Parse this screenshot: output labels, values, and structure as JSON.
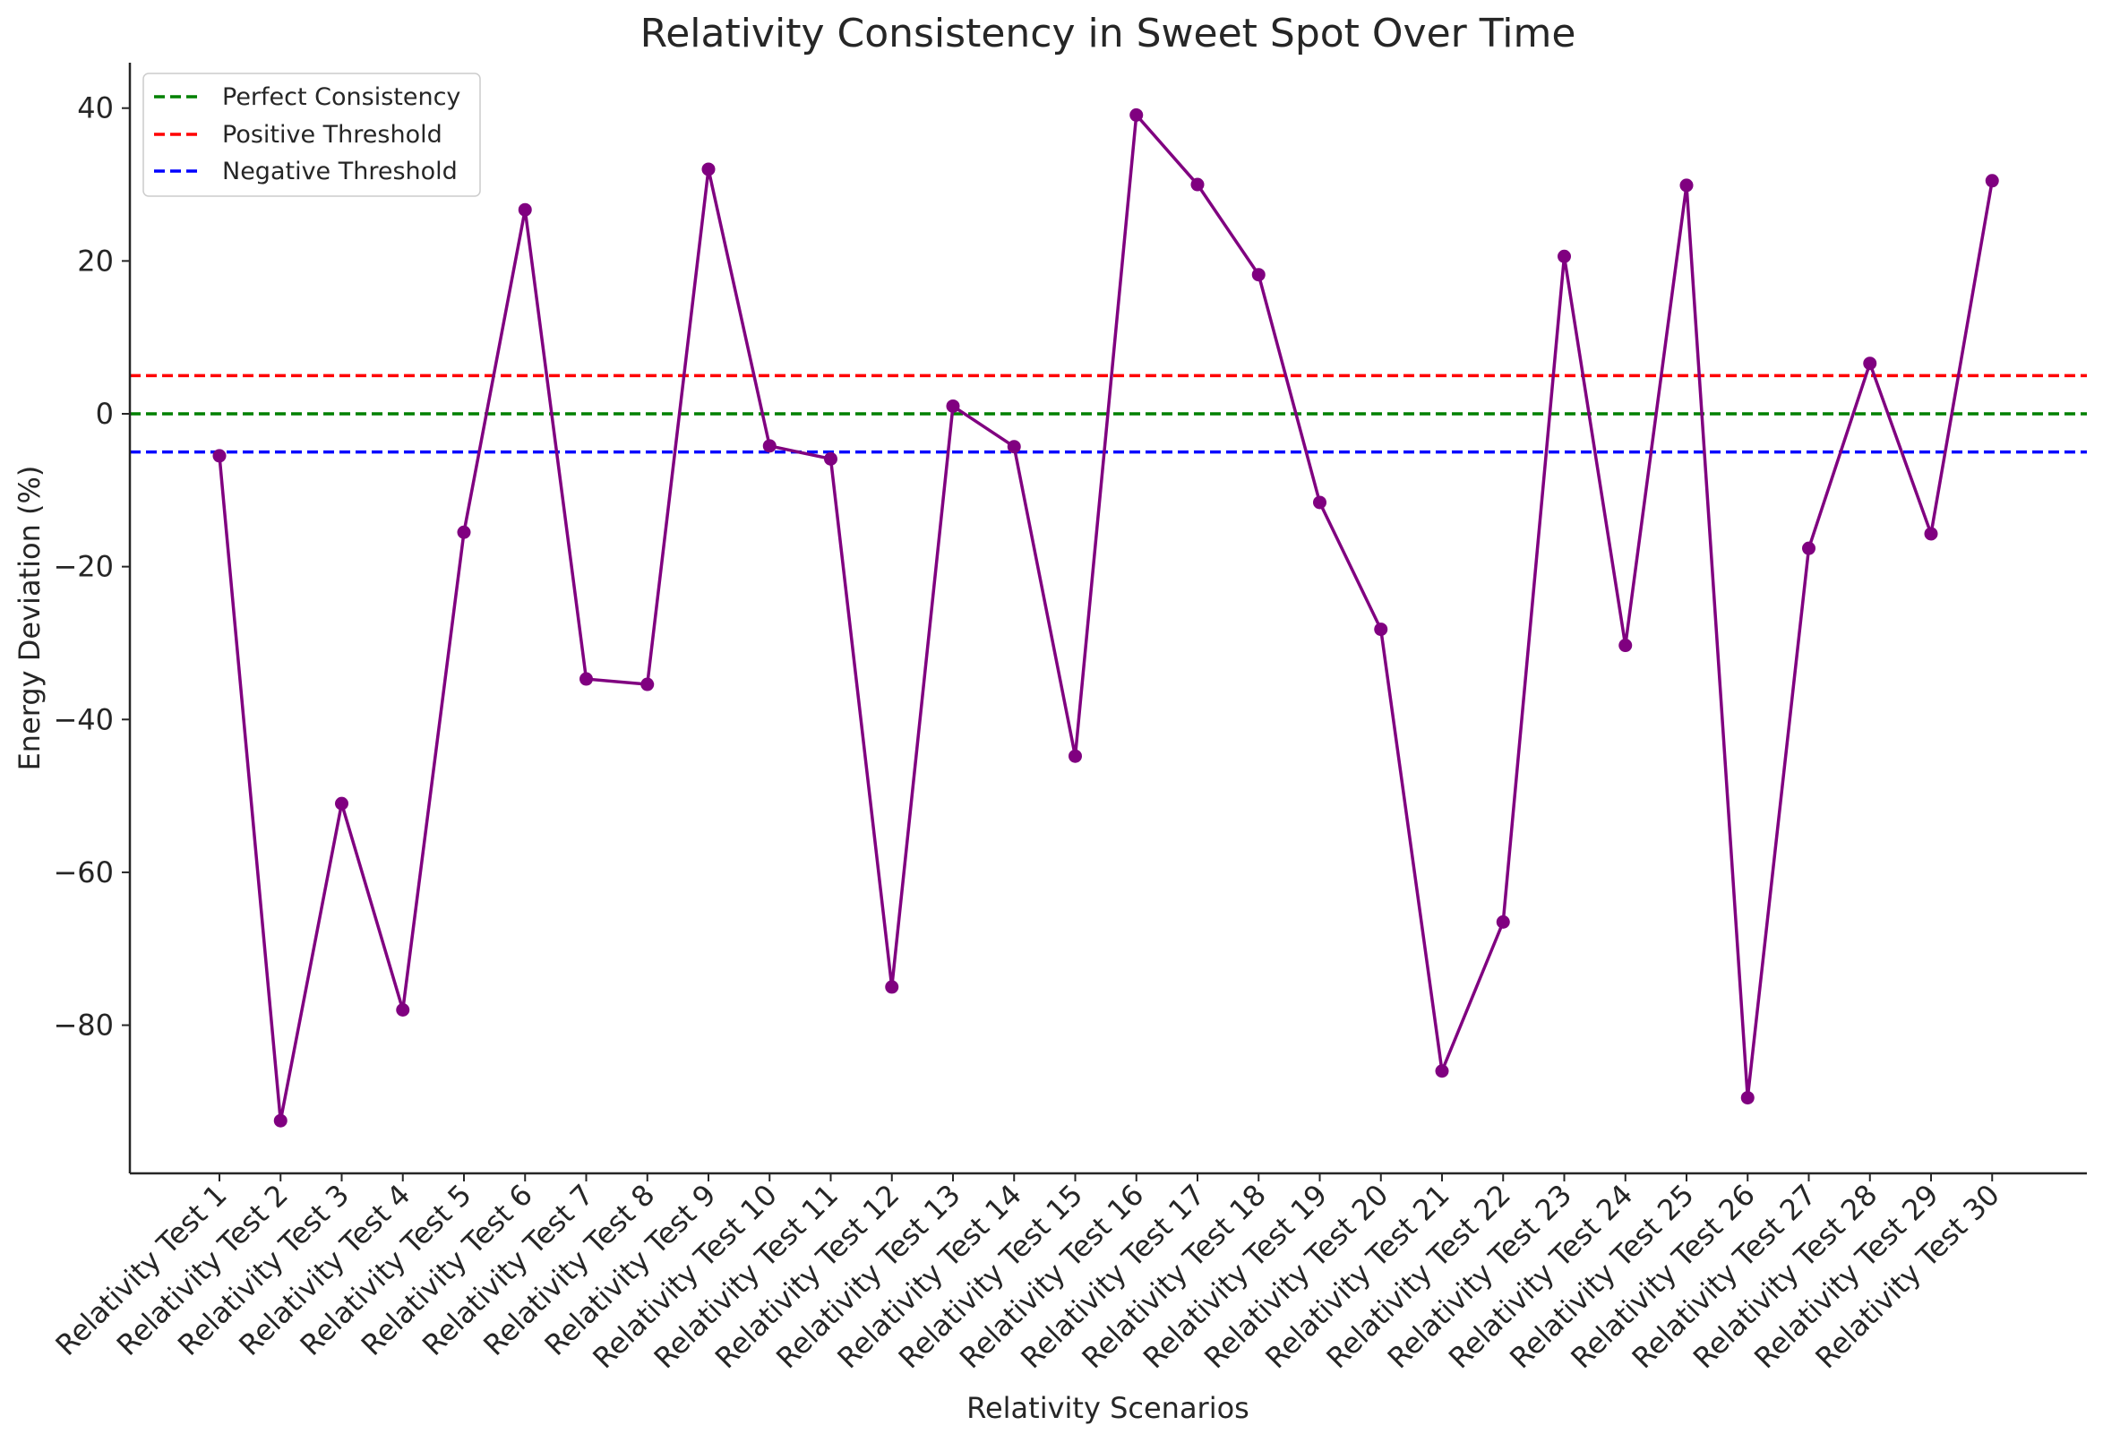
{
  "chart_data": {
    "type": "line",
    "title": "Relativity Consistency in Sweet Spot Over Time",
    "xlabel": "Relativity Scenarios",
    "ylabel": "Energy Deviation (%)",
    "ylim": [
      -97,
      46
    ],
    "yticks": [
      40,
      20,
      0,
      -20,
      -40,
      -60,
      -80
    ],
    "ytick_labels": [
      "40",
      "20",
      "0",
      "−20",
      "−40",
      "−60",
      "−80"
    ],
    "grid": false,
    "legend_position": "top-left",
    "categories": [
      "Relativity Test 1",
      "Relativity Test 2",
      "Relativity Test 3",
      "Relativity Test 4",
      "Relativity Test 5",
      "Relativity Test 6",
      "Relativity Test 7",
      "Relativity Test 8",
      "Relativity Test 9",
      "Relativity Test 10",
      "Relativity Test 11",
      "Relativity Test 12",
      "Relativity Test 13",
      "Relativity Test 14",
      "Relativity Test 15",
      "Relativity Test 16",
      "Relativity Test 17",
      "Relativity Test 18",
      "Relativity Test 19",
      "Relativity Test 20",
      "Relativity Test 21",
      "Relativity Test 22",
      "Relativity Test 23",
      "Relativity Test 24",
      "Relativity Test 25",
      "Relativity Test 26",
      "Relativity Test 27",
      "Relativity Test 28",
      "Relativity Test 29",
      "Relativity Test 30"
    ],
    "series": [
      {
        "color": "#800080",
        "values": [
          -5.5,
          -92.5,
          -51,
          -78,
          -15.5,
          26.7,
          -34.7,
          -35.4,
          32,
          -4.2,
          -5.9,
          -75,
          1,
          -4.3,
          -44.8,
          39.1,
          30,
          18.2,
          -11.6,
          -28.2,
          -86,
          -66.5,
          20.6,
          -30.3,
          29.9,
          -89.5,
          -17.6,
          6.6,
          -15.7,
          30.5
        ]
      }
    ],
    "reference_lines": [
      {
        "name": "Perfect Consistency",
        "value": 0,
        "color": "#008000"
      },
      {
        "name": "Positive Threshold",
        "value": 5,
        "color": "#ff0000"
      },
      {
        "name": "Negative Threshold",
        "value": -5,
        "color": "#0000ff"
      }
    ]
  }
}
